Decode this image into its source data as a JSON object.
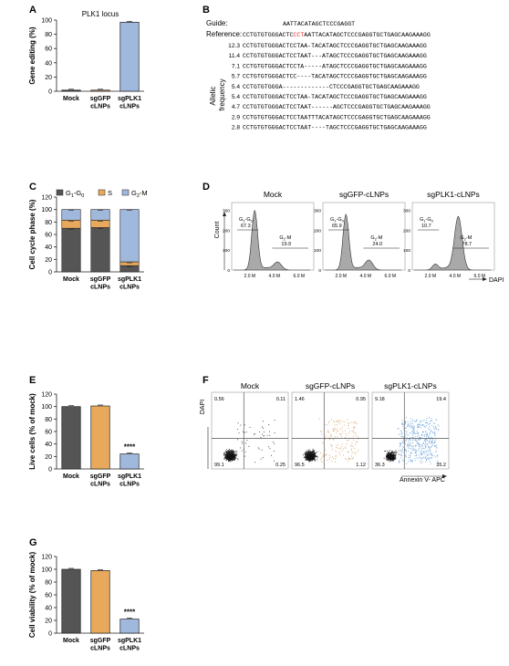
{
  "panels": {
    "A": {
      "letter": "A",
      "chart_data": {
        "type": "bar",
        "title": "PLK1 locus",
        "ylabel": "Gene editing (%)",
        "ylim": [
          0,
          100
        ],
        "yticks": [
          "0",
          "20",
          "40",
          "60",
          "80",
          "100"
        ],
        "categories": [
          [
            "Mock"
          ],
          [
            "sgGFP",
            "cLNPs"
          ],
          [
            "sgPLK1",
            "cLNPs"
          ]
        ],
        "values": [
          1,
          1,
          97
        ],
        "colors": [
          "#555555",
          "#e8a95c",
          "#9fb8dc"
        ]
      }
    },
    "B": {
      "letter": "B",
      "guide_label": "Guide:",
      "guide_seq": "AATTACATAGCTCCCGAGGT",
      "reference_label": "Reference:",
      "reference_pre": "CCTGTGTGGGACTC",
      "reference_red": "CCT",
      "reference_post": "AATTACATAGCTCCCGAGGTGCTGAGCAAGAAAGG",
      "side_label": [
        "Allelic",
        "frequency"
      ],
      "rows": [
        {
          "freq": "12.3",
          "seq": "CCTGTGTGGGACTCCTAA-TACATAGCTCCCGAGGTGCTGAGCAAGAAAGG"
        },
        {
          "freq": "11.4",
          "seq": "CCTGTGTGGGACTCCTAAT---ATAGCTCCCGAGGTGCTGAGCAAGAAAGG"
        },
        {
          "freq": "7.1",
          "seq": "CCTGTGTGGGACTCCTA-----ATAGCTCCCGAGGTGCTGAGCAAGAAAGG"
        },
        {
          "freq": "5.7",
          "seq": "CCTGTGTGGGACTCC----TACATAGCTCCCGAGGTGCTGAGCAAGAAAGG"
        },
        {
          "freq": "5.4",
          "seq": "CCTGTGTGGGA-------------CTCCCGAGGTGCTGAGCAAGAAAGG"
        },
        {
          "freq": "5.4",
          "seq": "CCTGTGTGGGACTCCTAA-TACATAGCTCCCGAGGTGCTGAGCAAGAAAGG"
        },
        {
          "freq": "4.7",
          "seq": "CCTGTGTGGGACTCCTAAT------AGCTCCCGAGGTGCTGAGCAAGAAAGG"
        },
        {
          "freq": "2.9",
          "seq": "CCTGTGTGGGACTCCTAATTTACATAGCTCCCGAGGTGCTGAGCAAGAAAGG"
        },
        {
          "freq": "2.8",
          "seq": "CCTGTGTGGGACTCCTAAT----TAGCTCCCGAGGTGCTGAGCAAGAAAGG"
        }
      ]
    },
    "C": {
      "letter": "C",
      "chart_data": {
        "type": "bar",
        "stacked": true,
        "ylabel": "Cell cycle phase (%)",
        "ylim": [
          0,
          120
        ],
        "yticks": [
          "0",
          "20",
          "40",
          "60",
          "80",
          "100",
          "120"
        ],
        "categories": [
          [
            "Mock"
          ],
          [
            "sgGFP",
            "cLNPs"
          ],
          [
            "sgPLK1",
            "cLNPs"
          ]
        ],
        "legend_position": "top",
        "series": [
          {
            "name": "G1-G0",
            "legend_main": "G",
            "legend_sub1": "1",
            "legend_mid": "-G",
            "legend_sub2": "0",
            "color": "#555555",
            "values": [
              70,
              71,
              10
            ]
          },
          {
            "name": "S",
            "legend_main": "S",
            "legend_sub1": "",
            "legend_mid": "",
            "legend_sub2": "",
            "color": "#e8a95c",
            "values": [
              13,
              12,
              6
            ]
          },
          {
            "name": "G2-M",
            "legend_main": "G",
            "legend_sub1": "2",
            "legend_mid": "-M",
            "legend_sub2": "",
            "color": "#9fb8dc",
            "values": [
              17,
              17,
              84
            ]
          }
        ]
      }
    },
    "D": {
      "letter": "D",
      "y_label": "Count",
      "x_label": "DAPI",
      "x_ticks": [
        "2.0 M",
        "4.0 M",
        "6.0 M"
      ],
      "y_ticks": [
        "0",
        "100",
        "200",
        "300"
      ],
      "histograms": [
        {
          "title": "Mock",
          "g1_main": "G",
          "g1_sub1": "1",
          "g1_mid": "-G",
          "g1_sub2": "0",
          "g1_value": "67.3",
          "g2_main": "G",
          "g2_sub": "2",
          "g2_mid": "-M",
          "g2_value": "19.9",
          "g1_peak": 300,
          "g2_peak": 40
        },
        {
          "title": "sgGFP-cLNPs",
          "g1_main": "G",
          "g1_sub1": "1",
          "g1_mid": "-G",
          "g1_sub2": "0",
          "g1_value": "65.9",
          "g2_main": "G",
          "g2_sub": "2",
          "g2_mid": "-M",
          "g2_value": "24.0",
          "g1_peak": 280,
          "g2_peak": 50
        },
        {
          "title": "sgPLK1-cLNPs",
          "g1_main": "G",
          "g1_sub1": "1",
          "g1_mid": "-G",
          "g1_sub2": "0",
          "g1_value": "10.7",
          "g2_main": "G",
          "g2_sub": "2",
          "g2_mid": "-M",
          "g2_value": "78.7",
          "g1_peak": 30,
          "g2_peak": 270
        }
      ]
    },
    "E": {
      "letter": "E",
      "chart_data": {
        "type": "bar",
        "ylabel": "Live cells (% of mock)",
        "ylim": [
          0,
          120
        ],
        "yticks": [
          "0",
          "20",
          "40",
          "60",
          "80",
          "100",
          "120"
        ],
        "categories": [
          [
            "Mock"
          ],
          [
            "sgGFP",
            "cLNPs"
          ],
          [
            "sgPLK1",
            "cLNPs"
          ]
        ],
        "values": [
          100,
          101,
          24
        ],
        "colors": [
          "#555555",
          "#e8a95c",
          "#9fb8dc"
        ],
        "annotation": "****"
      }
    },
    "F": {
      "letter": "F",
      "y_label": "DAPI",
      "x_label": "Annexin V- APC",
      "plots": [
        {
          "title": "Mock",
          "q_ul": "0.56",
          "q_ur": "0.11",
          "q_ll": "99.1",
          "q_lr": "0.25",
          "color": "#333333",
          "spread": 0.1
        },
        {
          "title": "sgGFP-cLNPs",
          "q_ul": "1.46",
          "q_ur": "0.95",
          "q_ll": "96.5",
          "q_lr": "1.12",
          "color": "#d89a5a",
          "spread": 0.25
        },
        {
          "title": "sgPLK1-cLNPs",
          "q_ul": "9.18",
          "q_ur": "19.4",
          "q_ll": "36.3",
          "q_lr": "35.2",
          "color": "#6aa0d8",
          "spread": 0.7
        }
      ]
    },
    "G": {
      "letter": "G",
      "chart_data": {
        "type": "bar",
        "ylabel": "Cell viability (% of mock)",
        "ylim": [
          0,
          120
        ],
        "yticks": [
          "0",
          "20",
          "40",
          "60",
          "80",
          "100",
          "120"
        ],
        "categories": [
          [
            "Mock"
          ],
          [
            "sgGFP",
            "cLNPs"
          ],
          [
            "sgPLK1",
            "cLNPs"
          ]
        ],
        "values": [
          100,
          98,
          22
        ],
        "colors": [
          "#555555",
          "#e8a95c",
          "#9fb8dc"
        ],
        "annotation": "****"
      }
    }
  }
}
